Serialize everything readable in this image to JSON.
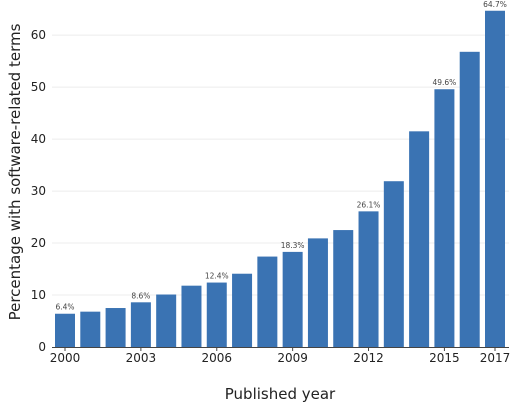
{
  "chart_data": {
    "type": "bar",
    "title": "",
    "xlabel": "Published year",
    "ylabel": "Percentage with software-related terms",
    "categories": [
      "2000",
      "2001",
      "2002",
      "2003",
      "2004",
      "2005",
      "2006",
      "2007",
      "2008",
      "2009",
      "2010",
      "2011",
      "2012",
      "2013",
      "2014",
      "2015",
      "2016",
      "2017"
    ],
    "values": [
      6.4,
      6.8,
      7.5,
      8.6,
      10.1,
      11.8,
      12.4,
      14.1,
      17.4,
      18.3,
      20.9,
      22.5,
      26.1,
      31.9,
      41.5,
      49.6,
      56.8,
      64.7
    ],
    "x_tick_labels": [
      "2000",
      "2003",
      "2006",
      "2009",
      "2012",
      "2015",
      "2017"
    ],
    "y_ticks": [
      0,
      10,
      20,
      30,
      40,
      50,
      60
    ],
    "ylim": [
      0,
      66
    ],
    "data_labels": [
      {
        "category": "2000",
        "text": "6.4%"
      },
      {
        "category": "2003",
        "text": "8.6%"
      },
      {
        "category": "2006",
        "text": "12.4%"
      },
      {
        "category": "2009",
        "text": "18.3%"
      },
      {
        "category": "2012",
        "text": "26.1%"
      },
      {
        "category": "2015",
        "text": "49.6%"
      },
      {
        "category": "2017",
        "text": "64.7%"
      }
    ],
    "grid": "horizontal",
    "legend": "none",
    "colors": {
      "bar": "#3a73b3",
      "grid": "#ececec",
      "axis": "#444444"
    }
  }
}
